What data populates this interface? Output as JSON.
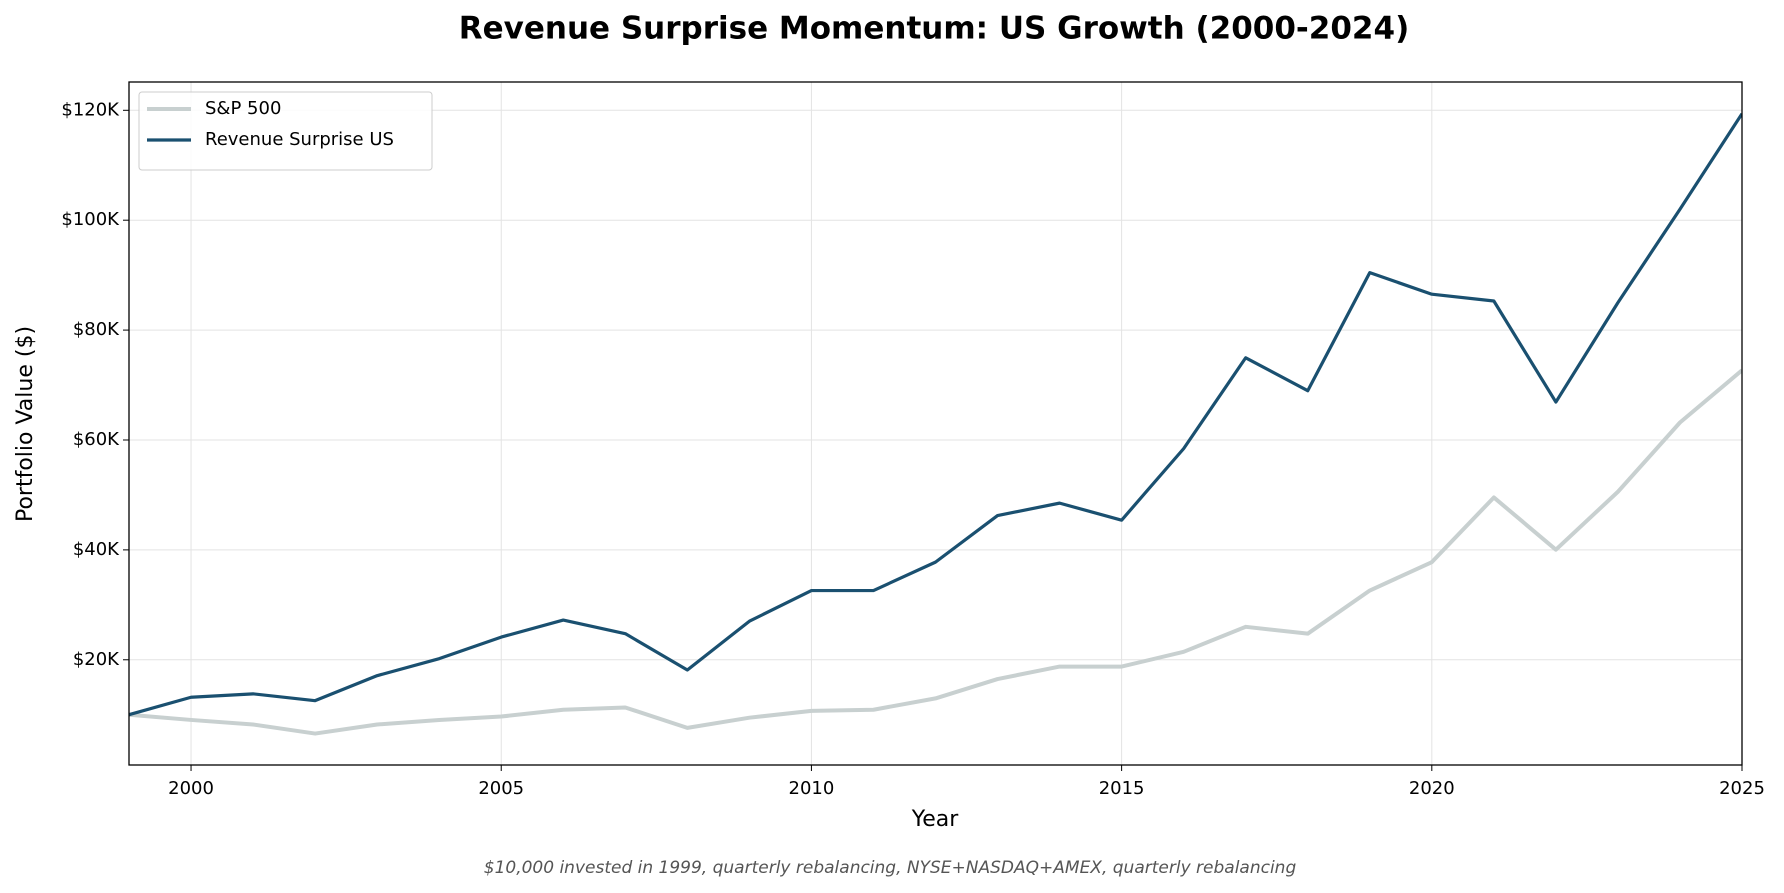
{
  "chart_data": {
    "type": "line",
    "title": "Revenue Surprise Momentum: US Growth (2000-2024)",
    "footnote": "$10,000 invested in 1999, quarterly rebalancing, NYSE+NASDAQ+AMEX, quarterly rebalancing",
    "x_label": "Year",
    "y_label": "Portfolio Value ($)",
    "x": [
      1999,
      2000,
      2001,
      2002,
      2003,
      2004,
      2005,
      2006,
      2007,
      2008,
      2009,
      2010,
      2011,
      2012,
      2013,
      2014,
      2015,
      2016,
      2017,
      2018,
      2019,
      2020,
      2021,
      2022,
      2023,
      2024,
      2025
    ],
    "series": [
      {
        "name": "S&P 500",
        "color": "#c8d0d0",
        "width": 4,
        "values": [
          10000,
          9050,
          8220,
          6570,
          8220,
          9050,
          9670,
          10910,
          11320,
          7600,
          9460,
          10700,
          10910,
          12970,
          16490,
          18760,
          18760,
          21450,
          26000,
          24750,
          32600,
          37770,
          49540,
          40040,
          50580,
          63180,
          72680
        ]
      },
      {
        "name": "Revenue Surprise US",
        "color": "#1a5070",
        "width": 3.2,
        "values": [
          10000,
          13180,
          13800,
          12560,
          17110,
          20200,
          24130,
          27230,
          24750,
          18140,
          27020,
          32600,
          32600,
          37770,
          46240,
          48510,
          45410,
          58430,
          74960,
          68970,
          90450,
          86530,
          85290,
          66900,
          85000,
          102000,
          119380
        ]
      }
    ],
    "xlim": [
      1999,
      2025
    ],
    "ylim": [
      850,
      125150
    ],
    "xticks": [
      2000,
      2005,
      2010,
      2015,
      2020,
      2025
    ],
    "yticks": [
      {
        "value": 20000,
        "label": "$20K"
      },
      {
        "value": 40000,
        "label": "$40K"
      },
      {
        "value": 60000,
        "label": "$60K"
      },
      {
        "value": 80000,
        "label": "$80K"
      },
      {
        "value": 100000,
        "label": "$100K"
      },
      {
        "value": 120000,
        "label": "$120K"
      }
    ],
    "grid": true,
    "legend": "upper left"
  }
}
